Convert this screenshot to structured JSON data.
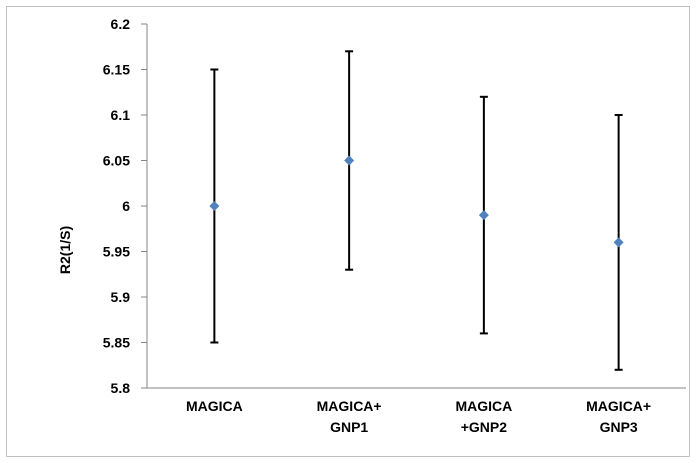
{
  "chart_data": {
    "type": "scatter",
    "title": "",
    "xlabel": "",
    "ylabel": "R2(1/S)",
    "ylim": [
      5.8,
      6.2
    ],
    "yticks": [
      "5.8",
      "5.85",
      "5.9",
      "5.95",
      "6",
      "6.05",
      "6.1",
      "6.15",
      "6.2"
    ],
    "grid": false,
    "legend": "none",
    "categories": [
      [
        "MAGICA"
      ],
      [
        "MAGICA+",
        "GNP1"
      ],
      [
        "MAGICA",
        "+GNP2"
      ],
      [
        "MAGICA+",
        "GNP3"
      ]
    ],
    "series": [
      {
        "values": [
          6.0,
          6.05,
          5.99,
          5.96
        ],
        "error_low": [
          5.85,
          5.93,
          5.86,
          5.82
        ],
        "error_high": [
          6.15,
          6.17,
          6.12,
          6.1
        ],
        "color": "#4f81bd"
      }
    ]
  }
}
